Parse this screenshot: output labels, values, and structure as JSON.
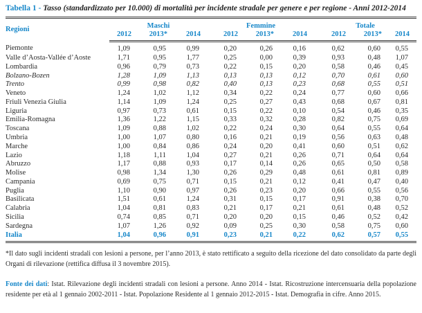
{
  "title": {
    "label": "Tabella 1 -",
    "text": "Tasso (standardizzato per 10.000) di mortalità per incidente stradale per genere e per regione - Anni 2012-2014"
  },
  "table": {
    "region_header": "Regioni",
    "groups": [
      {
        "label": "Maschi"
      },
      {
        "label": "Femmine"
      },
      {
        "label": "Totale"
      }
    ],
    "year_headers": [
      "2012",
      "2013*",
      "2014",
      "2012",
      "2013*",
      "2014",
      "2012",
      "2013*",
      "2014"
    ],
    "rows": [
      {
        "region": "Piemonte",
        "style": "normal",
        "values": [
          "1,09",
          "0,95",
          "0,99",
          "0,20",
          "0,26",
          "0,16",
          "0,62",
          "0,60",
          "0,55"
        ]
      },
      {
        "region": "Valle d’Aosta-Vallée d’Aoste",
        "style": "normal",
        "values": [
          "1,71",
          "0,95",
          "1,77",
          "0,25",
          "0,00",
          "0,39",
          "0,93",
          "0,48",
          "1,07"
        ]
      },
      {
        "region": "Lombardia",
        "style": "normal",
        "values": [
          "0,96",
          "0,79",
          "0,73",
          "0,22",
          "0,15",
          "0,20",
          "0,58",
          "0,46",
          "0,45"
        ]
      },
      {
        "region": "Bolzano-Bozen",
        "style": "italic",
        "values": [
          "1,28",
          "1,09",
          "1,13",
          "0,13",
          "0,13",
          "0,12",
          "0,70",
          "0,61",
          "0,60"
        ]
      },
      {
        "region": "Trento",
        "style": "italic",
        "values": [
          "0,99",
          "0,98",
          "0,82",
          "0,40",
          "0,13",
          "0,23",
          "0,68",
          "0,55",
          "0,51"
        ]
      },
      {
        "region": "Veneto",
        "style": "normal",
        "values": [
          "1,24",
          "1,02",
          "1,12",
          "0,34",
          "0,22",
          "0,24",
          "0,77",
          "0,60",
          "0,66"
        ]
      },
      {
        "region": "Friuli Venezia Giulia",
        "style": "normal",
        "values": [
          "1,14",
          "1,09",
          "1,24",
          "0,25",
          "0,27",
          "0,43",
          "0,68",
          "0,67",
          "0,81"
        ]
      },
      {
        "region": "Liguria",
        "style": "normal",
        "values": [
          "0,97",
          "0,73",
          "0,61",
          "0,15",
          "0,22",
          "0,10",
          "0,54",
          "0,46",
          "0,35"
        ]
      },
      {
        "region": "Emilia-Romagna",
        "style": "normal",
        "values": [
          "1,36",
          "1,22",
          "1,15",
          "0,33",
          "0,32",
          "0,28",
          "0,82",
          "0,75",
          "0,69"
        ]
      },
      {
        "region": "Toscana",
        "style": "normal",
        "values": [
          "1,09",
          "0,88",
          "1,02",
          "0,22",
          "0,24",
          "0,30",
          "0,64",
          "0,55",
          "0,64"
        ]
      },
      {
        "region": "Umbria",
        "style": "normal",
        "values": [
          "1,00",
          "1,07",
          "0,80",
          "0,16",
          "0,21",
          "0,19",
          "0,56",
          "0,63",
          "0,48"
        ]
      },
      {
        "region": "Marche",
        "style": "normal",
        "values": [
          "1,00",
          "0,84",
          "0,86",
          "0,24",
          "0,20",
          "0,41",
          "0,60",
          "0,51",
          "0,62"
        ]
      },
      {
        "region": "Lazio",
        "style": "normal",
        "values": [
          "1,18",
          "1,11",
          "1,04",
          "0,27",
          "0,21",
          "0,26",
          "0,71",
          "0,64",
          "0,64"
        ]
      },
      {
        "region": "Abruzzo",
        "style": "normal",
        "values": [
          "1,17",
          "0,88",
          "0,93",
          "0,17",
          "0,14",
          "0,26",
          "0,65",
          "0,50",
          "0,58"
        ]
      },
      {
        "region": "Molise",
        "style": "normal",
        "values": [
          "0,98",
          "1,34",
          "1,30",
          "0,26",
          "0,29",
          "0,48",
          "0,61",
          "0,81",
          "0,89"
        ]
      },
      {
        "region": "Campania",
        "style": "normal",
        "values": [
          "0,69",
          "0,75",
          "0,71",
          "0,15",
          "0,21",
          "0,12",
          "0,41",
          "0,47",
          "0,40"
        ]
      },
      {
        "region": "Puglia",
        "style": "normal",
        "values": [
          "1,10",
          "0,90",
          "0,97",
          "0,26",
          "0,23",
          "0,20",
          "0,66",
          "0,55",
          "0,56"
        ]
      },
      {
        "region": "Basilicata",
        "style": "normal",
        "values": [
          "1,51",
          "0,61",
          "1,24",
          "0,31",
          "0,15",
          "0,17",
          "0,91",
          "0,38",
          "0,70"
        ]
      },
      {
        "region": "Calabria",
        "style": "normal",
        "values": [
          "1,04",
          "0,81",
          "0,83",
          "0,21",
          "0,17",
          "0,21",
          "0,61",
          "0,48",
          "0,52"
        ]
      },
      {
        "region": "Sicilia",
        "style": "normal",
        "values": [
          "0,74",
          "0,85",
          "0,71",
          "0,20",
          "0,20",
          "0,15",
          "0,46",
          "0,52",
          "0,42"
        ]
      },
      {
        "region": "Sardegna",
        "style": "normal",
        "values": [
          "1,07",
          "1,26",
          "0,92",
          "0,09",
          "0,25",
          "0,30",
          "0,58",
          "0,75",
          "0,60"
        ]
      },
      {
        "region": "Italia",
        "style": "total",
        "values": [
          "1,04",
          "0,96",
          "0,91",
          "0,23",
          "0,21",
          "0,22",
          "0,62",
          "0,57",
          "0,55"
        ]
      }
    ]
  },
  "footnotes": {
    "asterisk_note": "*Il dato sugli incidenti stradali con lesioni a persone, per l’anno 2013, è stato rettificato a seguito della ricezione del dato consolidato da parte degli Organi di rilevazione (rettifica diffusa il 3 novembre 2015).",
    "source_label": "Fonte dei dati",
    "source_text": ": Istat. Rilevazione degli incidenti stradali con lesioni a persone. Anno 2014 - Istat. Ricostruzione intercensuaria della popolazione residente per età al 1 gennaio 2002-2011 - Istat. Popolazione Residente al 1 gennaio 2012-2015 - Istat. Demografia in cifre. Anno 2015."
  },
  "colors": {
    "accent_blue": "#1787c9",
    "text": "#2b2b2b",
    "rule": "#3c3c3c"
  }
}
